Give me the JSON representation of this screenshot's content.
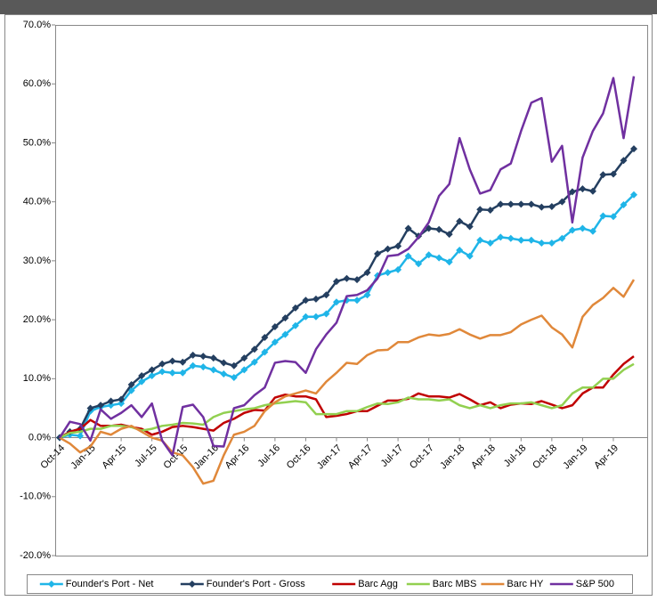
{
  "chart_data": {
    "type": "line",
    "categories": [
      "Oct-14",
      null,
      null,
      "Jan-15",
      null,
      null,
      "Apr-15",
      null,
      null,
      "Jul-15",
      null,
      null,
      "Oct-15",
      null,
      null,
      "Jan-16",
      null,
      null,
      "Apr-16",
      null,
      null,
      "Jul-16",
      null,
      null,
      "Oct-16",
      null,
      null,
      "Jan-17",
      null,
      null,
      "Apr-17",
      null,
      null,
      "Jul-17",
      null,
      null,
      "Oct-17",
      null,
      null,
      "Jan-18",
      null,
      null,
      "Apr-18",
      null,
      null,
      "Jul-18",
      null,
      null,
      "Oct-18",
      null,
      null,
      "Jan-19",
      null,
      null,
      "Apr-19",
      null,
      null
    ],
    "series": [
      {
        "name": "Founder's Port - Net",
        "color": "#1fb5e8",
        "marker": "diamond",
        "values": [
          0,
          0.5,
          0.3,
          4.5,
          5.2,
          5.5,
          5.8,
          8,
          9.5,
          10.5,
          11.2,
          11,
          11,
          12.2,
          12,
          11.5,
          10.8,
          10.2,
          11.5,
          12.8,
          14.5,
          16.2,
          17.5,
          19,
          20.5,
          20.5,
          21,
          23,
          23.3,
          23.3,
          24.2,
          27.5,
          28,
          28.5,
          30.8,
          29.5,
          31,
          30.5,
          29.8,
          31.8,
          30.8,
          33.5,
          33,
          34,
          33.8,
          33.5,
          33.5,
          33,
          33,
          33.8,
          35.2,
          35.5,
          35,
          37.6,
          37.5,
          39.5,
          41.2
        ]
      },
      {
        "name": "Founder's Port - Gross",
        "color": "#243f60",
        "marker": "diamond",
        "values": [
          0,
          1,
          1.5,
          5,
          5.5,
          6.2,
          6.5,
          9,
          10.5,
          11.5,
          12.5,
          13,
          12.8,
          14,
          13.8,
          13.5,
          12.7,
          12.2,
          13.5,
          15,
          17,
          18.8,
          20.3,
          22,
          23.3,
          23.5,
          24.2,
          26.5,
          27,
          26.8,
          28,
          31.2,
          32,
          32.5,
          35.5,
          34.2,
          35.5,
          35.3,
          34.5,
          36.7,
          35.8,
          38.7,
          38.6,
          39.6,
          39.6,
          39.6,
          39.6,
          39.1,
          39.2,
          40,
          41.7,
          42.2,
          41.8,
          44.6,
          44.7,
          47,
          49
        ]
      },
      {
        "name": "Barc Agg",
        "color": "#c00000",
        "values": [
          0,
          1,
          1.5,
          3,
          2,
          2,
          2.2,
          1.8,
          1.5,
          0.5,
          1,
          1.8,
          2,
          1.8,
          1.5,
          1.2,
          2.5,
          3.2,
          4.2,
          4.7,
          4.6,
          6.8,
          7.3,
          7,
          7,
          6.5,
          3.5,
          3.7,
          4,
          4.5,
          4.5,
          5.4,
          6.3,
          6.3,
          6.6,
          7.5,
          7,
          7,
          6.8,
          7.4,
          6.5,
          5.5,
          6,
          5,
          5.6,
          5.8,
          5.7,
          6.2,
          5.6,
          5,
          5.5,
          7.5,
          8.5,
          8.5,
          10.7,
          12.5,
          13.8
        ]
      },
      {
        "name": "Barc MBS",
        "color": "#92d050",
        "values": [
          0,
          0.8,
          1,
          1.5,
          1.5,
          2,
          2,
          1.8,
          1.2,
          1.5,
          2,
          2.2,
          2.5,
          2.4,
          2.2,
          3.5,
          4.2,
          4.5,
          4.8,
          5,
          5.5,
          5.8,
          6,
          6.2,
          6,
          4,
          4,
          4,
          4.5,
          4.5,
          5.2,
          5.8,
          5.7,
          6,
          6.8,
          6.5,
          6.5,
          6.3,
          6.5,
          5.5,
          5,
          5.5,
          5,
          5.5,
          5.8,
          5.8,
          6,
          5.5,
          5,
          5.5,
          7.5,
          8.5,
          8.5,
          10,
          10,
          11.5,
          12.5
        ]
      },
      {
        "name": "Barc HY",
        "color": "#e0883a",
        "values": [
          0,
          -1,
          -2.5,
          -1.5,
          1,
          0.5,
          1.5,
          2,
          1,
          0,
          -0.5,
          -2.5,
          -3,
          -5,
          -7.8,
          -7.3,
          -3,
          0.5,
          1,
          2,
          4.5,
          6,
          7,
          7.5,
          8,
          7.5,
          9.5,
          11,
          12.7,
          12.5,
          14,
          14.8,
          14.9,
          16.2,
          16.2,
          17,
          17.5,
          17.3,
          17.6,
          18.4,
          17.5,
          16.8,
          17.4,
          17.4,
          17.9,
          19.2,
          20,
          20.7,
          18.7,
          17.5,
          15.3,
          20.5,
          22.5,
          23.7,
          25.4,
          23.9,
          26.8
        ]
      },
      {
        "name": "S&P 500",
        "color": "#7030a0",
        "values": [
          0,
          2.7,
          2.3,
          -0.5,
          4.8,
          3.2,
          4.2,
          5.5,
          3.5,
          5.8,
          -0.5,
          -3,
          5.2,
          5.6,
          3.5,
          -1.4,
          -1.5,
          5,
          5.5,
          7.2,
          8.5,
          12.7,
          13,
          12.8,
          11,
          15,
          17.5,
          19.5,
          24,
          24.2,
          25,
          27,
          30.8,
          31,
          32,
          34,
          36.5,
          41,
          43,
          50.8,
          45.5,
          41.4,
          42,
          45.5,
          46.5,
          52,
          56.8,
          57.6,
          46.8,
          49.5,
          36.5,
          47.5,
          52,
          55,
          61,
          50.8,
          61.3
        ]
      }
    ],
    "ylim": [
      -20,
      70
    ],
    "yticks": [
      {
        "value": -20,
        "label": "-20.0%"
      },
      {
        "value": -10,
        "label": "-10.0%"
      },
      {
        "value": 0,
        "label": "0.0%"
      },
      {
        "value": 10,
        "label": "10.0%"
      },
      {
        "value": 20,
        "label": "20.0%"
      },
      {
        "value": 30,
        "label": "30.0%"
      },
      {
        "value": 40,
        "label": "40.0%"
      },
      {
        "value": 50,
        "label": "50.0%"
      },
      {
        "value": 60,
        "label": "60.0%"
      },
      {
        "value": 70,
        "label": "70.0%"
      }
    ],
    "grid": false,
    "legend": "bottom"
  }
}
